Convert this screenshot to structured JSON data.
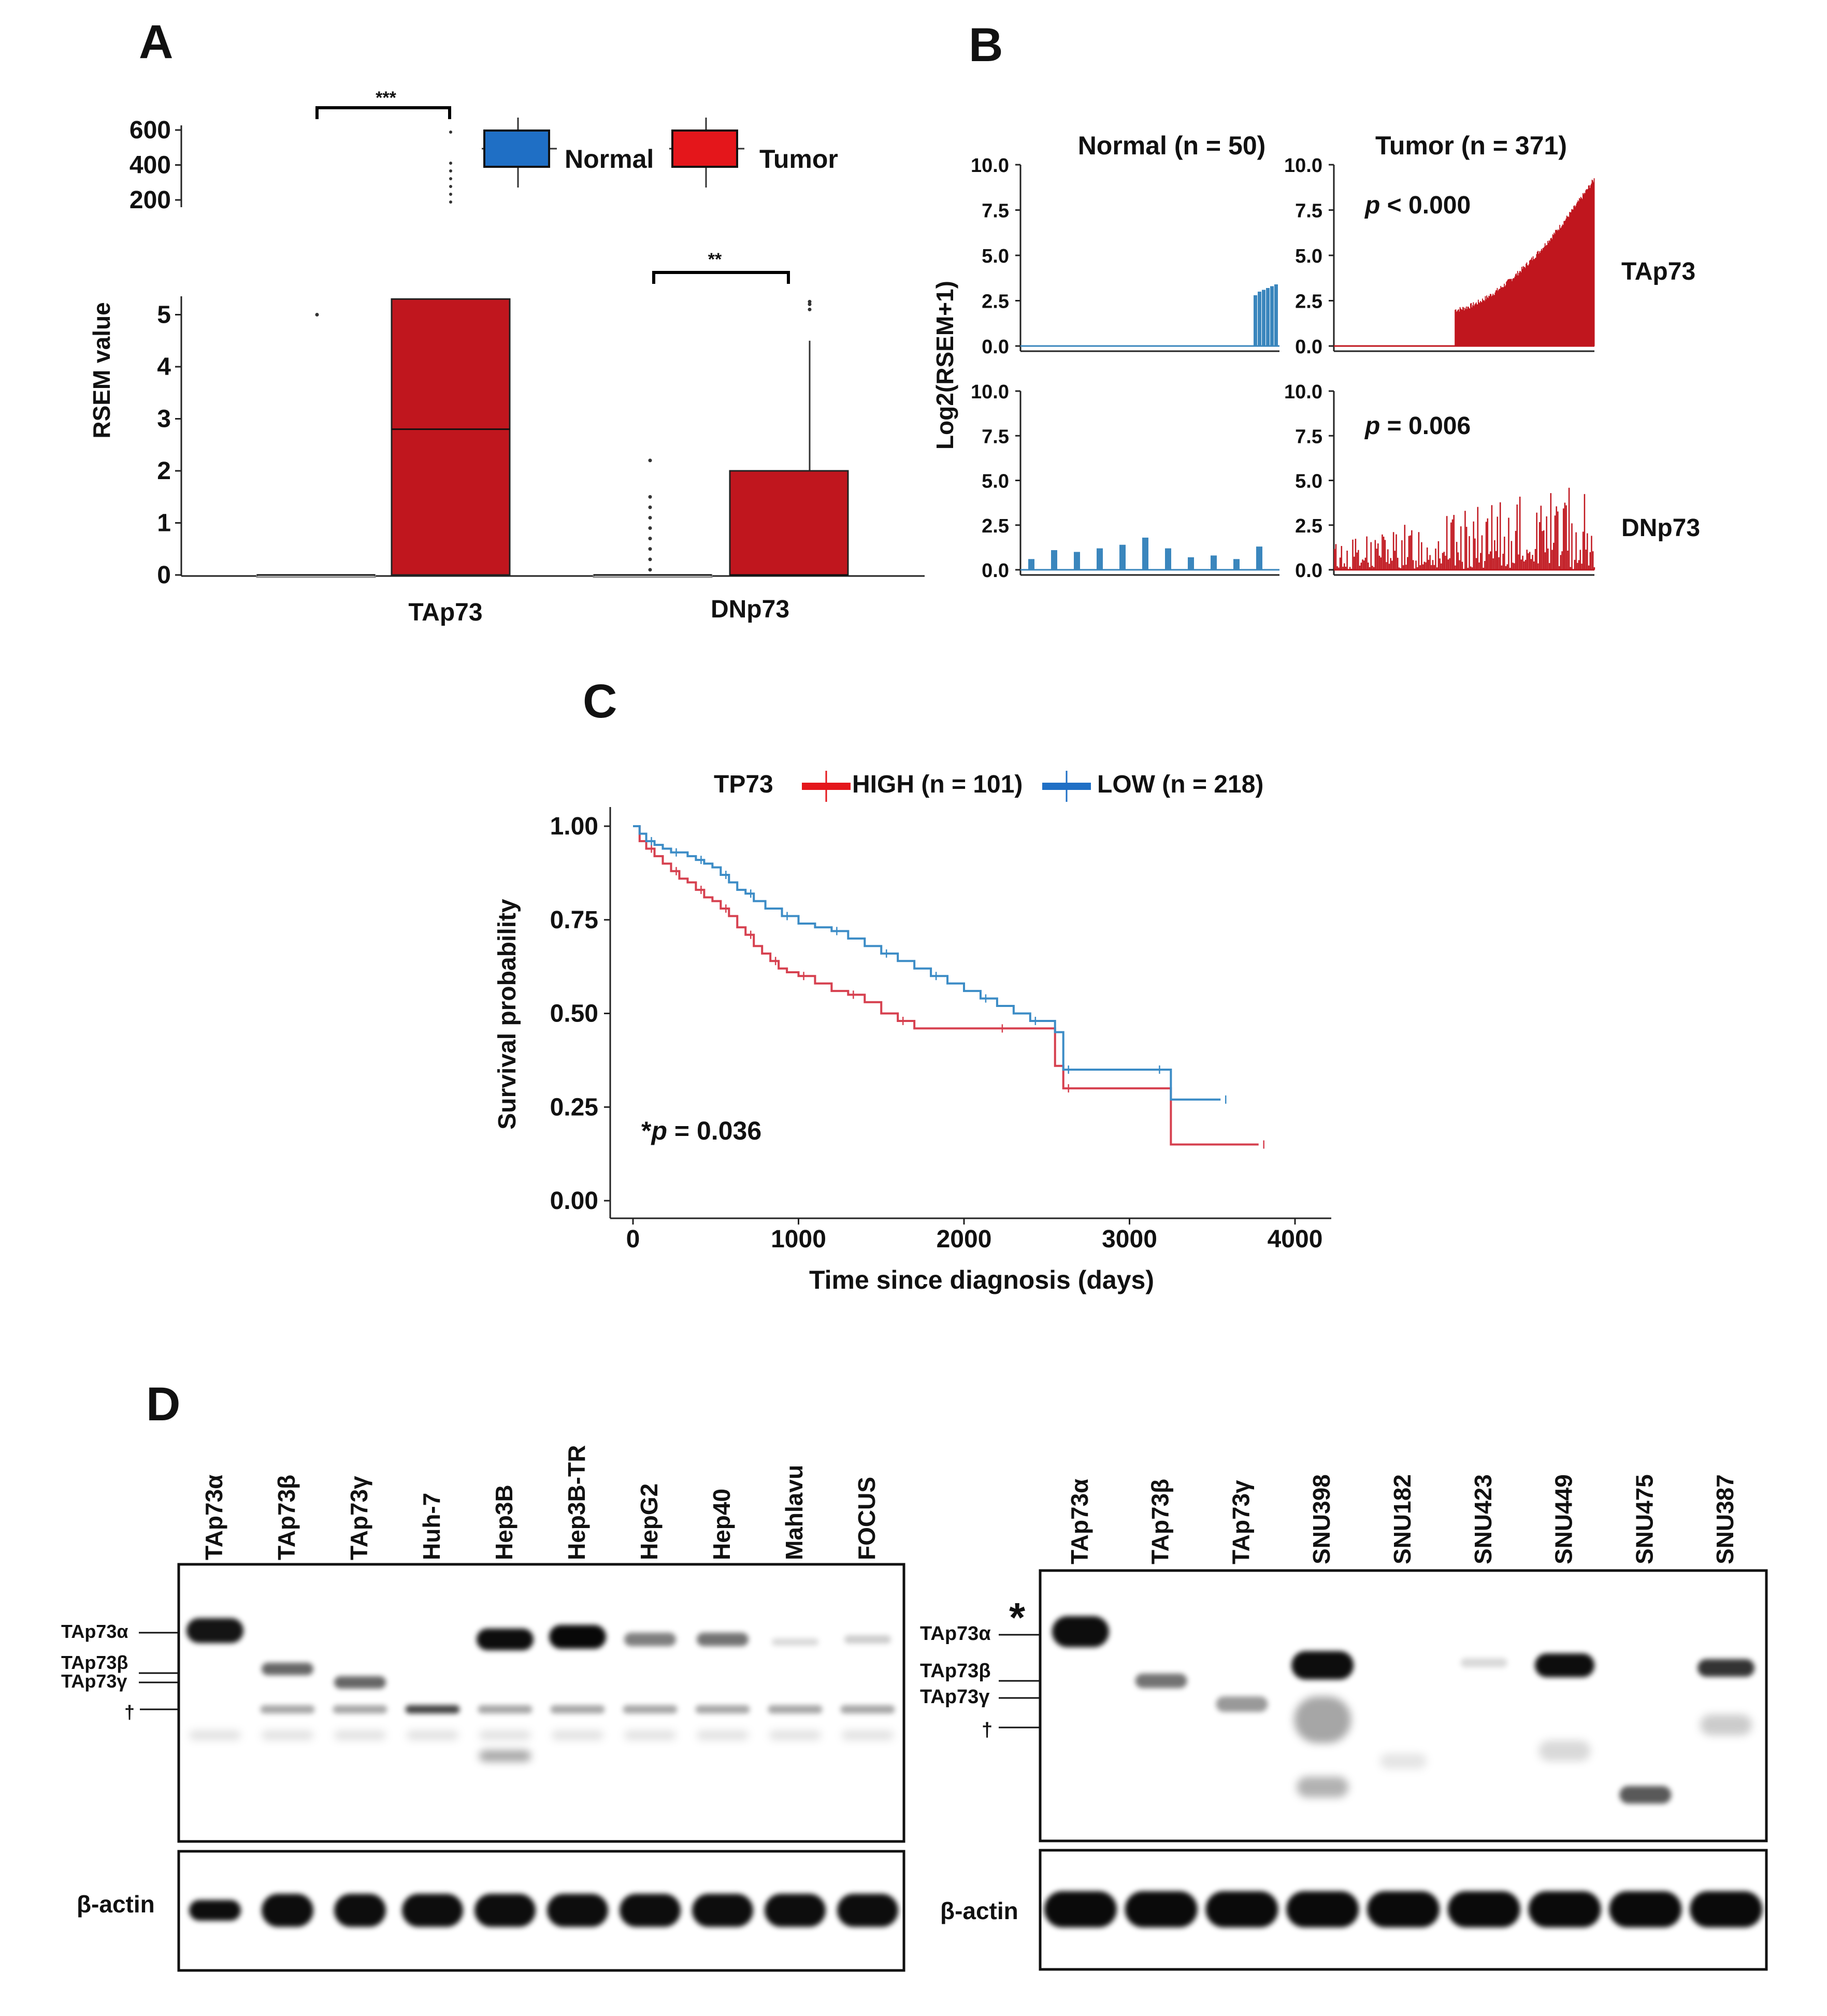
{
  "panels": {
    "a": "A",
    "b": "B",
    "c": "C",
    "d": "D"
  },
  "colors": {
    "normal_blue": "#3a86bd",
    "tumor_red": "#c0161e",
    "legend_blue": "#1f6fc5",
    "legend_red": "#e4161b",
    "km_red": "#d6404f",
    "km_blue": "#3c8cc6"
  },
  "chart_data": [
    {
      "id": "A",
      "type": "box",
      "ylabel": "RSEM value",
      "y_ticks_lower": [
        0,
        1,
        2,
        3,
        4,
        5
      ],
      "y_ticks_upper": [
        200,
        400,
        600
      ],
      "categories": [
        "TAp73",
        "DNp73"
      ],
      "legend": [
        "Normal",
        "Tumor"
      ],
      "boxes": [
        {
          "category": "TAp73",
          "group": "Normal",
          "q1": 0,
          "median": 0,
          "q3": 0,
          "whisker_low": 0,
          "whisker_high": 0,
          "outliers": [
            5.0
          ]
        },
        {
          "category": "TAp73",
          "group": "Tumor",
          "q1": 0,
          "median": 2.8,
          "q3": 5.3,
          "whisker_low": 0,
          "whisker_high": 5.3,
          "outliers": []
        },
        {
          "category": "DNp73",
          "group": "Normal",
          "q1": 0,
          "median": 0,
          "q3": 0,
          "whisker_low": 0,
          "whisker_high": 0,
          "outliers": [
            0.1,
            0.3,
            0.5,
            0.7,
            0.9,
            1.1,
            1.3,
            1.5,
            2.2
          ]
        },
        {
          "category": "DNp73",
          "group": "Tumor",
          "q1": 0,
          "median": 0,
          "q3": 2.0,
          "whisker_low": 0,
          "whisker_high": 4.5,
          "outliers": [
            5.1,
            5.2,
            5.25
          ]
        }
      ],
      "significance": [
        {
          "category": "TAp73",
          "label": "***"
        },
        {
          "category": "DNp73",
          "label": "**"
        }
      ]
    },
    {
      "id": "B",
      "type": "bar",
      "ylabel": "Log2(RSEM+1)",
      "y_ticks": [
        "0.0",
        "2.5",
        "5.0",
        "7.5",
        "10.0"
      ],
      "ylim": [
        0,
        10
      ],
      "columns": [
        "Normal (n = 50)",
        "Tumor (n = 371)"
      ],
      "rows": [
        {
          "gene": "TAp73",
          "p_label": "p",
          "p_text": " < 0.000",
          "normal_nonzero_values": [
            2.8,
            3.0,
            3.1,
            3.2,
            3.3,
            3.4
          ],
          "tumor_summary": {
            "n_zero": 172,
            "n_nonzero": 199,
            "min_nonzero": 2.0,
            "max": 9.2
          }
        },
        {
          "gene": "DNp73",
          "p_label": "p",
          "p_text": " = 0.006",
          "normal_nonzero_values": [
            0.6,
            1.1,
            1.0,
            1.2,
            1.4,
            1.8,
            1.2,
            0.7,
            0.8,
            0.6,
            1.3
          ],
          "tumor_summary": {
            "n_zero": 0,
            "n_nonzero": 371,
            "min_nonzero": 0.0,
            "max": 4.6
          }
        }
      ]
    },
    {
      "id": "C",
      "type": "line",
      "title": "TP73",
      "xlabel": "Time since diagnosis (days)",
      "ylabel": "Survival probability",
      "xlim": [
        0,
        4000
      ],
      "ylim": [
        0,
        1
      ],
      "x_ticks": [
        "0",
        "1000",
        "2000",
        "3000",
        "4000"
      ],
      "y_ticks": [
        "0.00",
        "0.25",
        "0.50",
        "0.75",
        "1.00"
      ],
      "annotation_star": "*",
      "annotation_p": "p",
      "annotation_rest": " = 0.036",
      "series": [
        {
          "name": "HIGH (n = 101)",
          "color": "#d6404f",
          "x": [
            0,
            40,
            80,
            130,
            180,
            230,
            280,
            330,
            380,
            430,
            480,
            530,
            580,
            630,
            680,
            730,
            780,
            830,
            880,
            930,
            1000,
            1100,
            1200,
            1300,
            1400,
            1500,
            1600,
            1700,
            1800,
            2200,
            2500,
            2550,
            2600,
            3200,
            3250,
            3780
          ],
          "y": [
            1.0,
            0.96,
            0.94,
            0.92,
            0.9,
            0.88,
            0.86,
            0.85,
            0.83,
            0.81,
            0.8,
            0.78,
            0.76,
            0.73,
            0.71,
            0.68,
            0.66,
            0.64,
            0.62,
            0.61,
            0.6,
            0.58,
            0.56,
            0.55,
            0.53,
            0.5,
            0.48,
            0.46,
            0.46,
            0.46,
            0.46,
            0.36,
            0.3,
            0.3,
            0.15,
            0.15
          ]
        },
        {
          "name": "LOW (n = 218)",
          "color": "#3c8cc6",
          "x": [
            0,
            40,
            80,
            130,
            180,
            230,
            280,
            330,
            380,
            430,
            480,
            530,
            580,
            630,
            680,
            730,
            800,
            900,
            1000,
            1100,
            1200,
            1300,
            1400,
            1500,
            1600,
            1700,
            1800,
            1900,
            2000,
            2100,
            2200,
            2300,
            2400,
            2500,
            2550,
            2600,
            3000,
            3100,
            3150,
            3250,
            3350,
            3550
          ],
          "y": [
            1.0,
            0.98,
            0.96,
            0.95,
            0.94,
            0.93,
            0.93,
            0.92,
            0.91,
            0.9,
            0.89,
            0.87,
            0.85,
            0.83,
            0.82,
            0.8,
            0.78,
            0.76,
            0.74,
            0.73,
            0.72,
            0.7,
            0.68,
            0.66,
            0.64,
            0.62,
            0.6,
            0.58,
            0.56,
            0.54,
            0.52,
            0.5,
            0.48,
            0.48,
            0.45,
            0.35,
            0.35,
            0.35,
            0.35,
            0.27,
            0.27,
            0.27
          ]
        }
      ]
    }
  ],
  "blots": {
    "left": {
      "lanes": [
        "TAp73α",
        "TAp73β",
        "TAp73γ",
        "Huh-7",
        "Hep3B",
        "Hep3B-TR",
        "HepG2",
        "Hep40",
        "Mahlavu",
        "FOCUS"
      ],
      "markers": [
        "TAp73α",
        "TAp73β",
        "TAp73γ",
        "†"
      ],
      "loading_control": "β-actin"
    },
    "right": {
      "lanes": [
        "TAp73α",
        "TAp73β",
        "TAp73γ",
        "SNU398",
        "SNU182",
        "SNU423",
        "SNU449",
        "SNU475",
        "SNU387"
      ],
      "markers": [
        "TAp73α",
        "TAp73β",
        "TAp73γ",
        "†"
      ],
      "asterisk": "*",
      "loading_control": "β-actin"
    }
  }
}
